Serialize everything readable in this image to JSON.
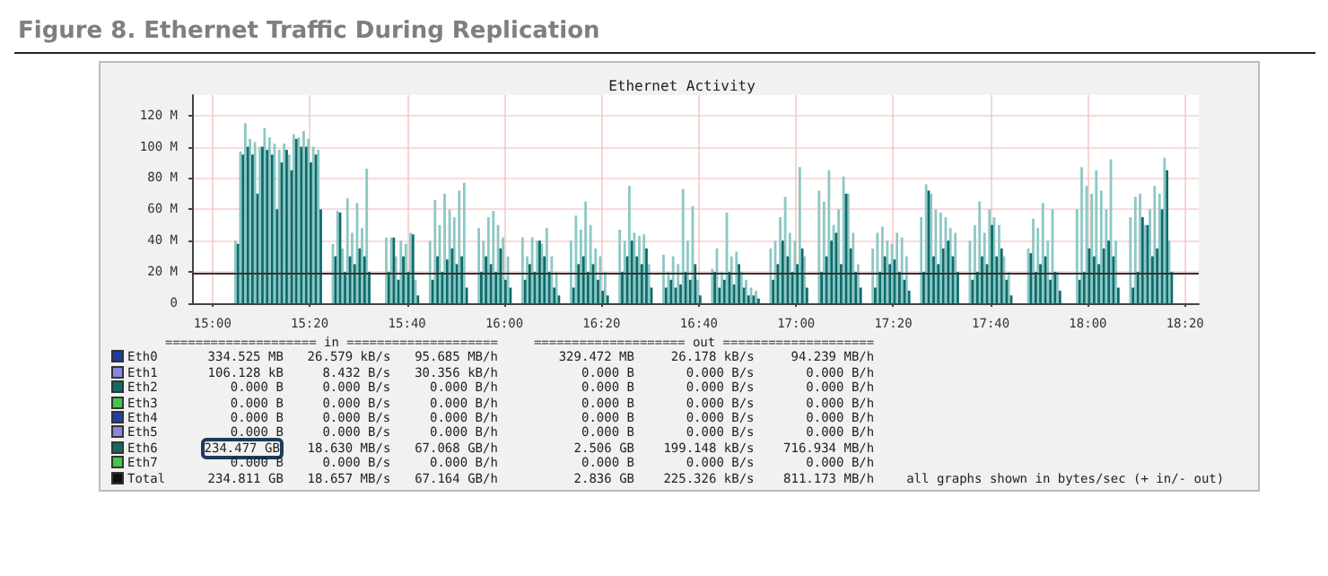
{
  "chart_data": {
    "type": "bar",
    "title": "Figure 8.  Ethernet Traffic During Replication",
    "subtitle": "Ethernet Activity",
    "x": [
      15.083,
      15.1,
      15.117,
      15.133,
      15.15,
      15.167,
      15.183,
      15.2,
      15.217,
      15.233,
      15.25,
      15.267,
      15.283,
      15.3,
      15.317,
      15.333,
      15.35,
      15.367,
      15.417,
      15.433,
      15.45,
      15.467,
      15.483,
      15.5,
      15.517,
      15.533,
      15.6,
      15.617,
      15.633,
      15.65,
      15.667,
      15.683,
      15.7,
      15.75,
      15.767,
      15.783,
      15.8,
      15.817,
      15.833,
      15.85,
      15.867,
      15.917,
      15.933,
      15.95,
      15.967,
      15.983,
      16.0,
      16.017,
      16.067,
      16.083,
      16.1,
      16.117,
      16.133,
      16.15,
      16.167,
      16.183,
      16.233,
      16.25,
      16.267,
      16.283,
      16.3,
      16.317,
      16.333,
      16.35,
      16.4,
      16.417,
      16.433,
      16.45,
      16.467,
      16.483,
      16.5,
      16.55,
      16.567,
      16.583,
      16.6,
      16.617,
      16.633,
      16.65,
      16.667,
      16.717,
      16.733,
      16.75,
      16.767,
      16.783,
      16.8,
      16.817,
      16.833,
      16.85,
      16.867,
      16.917,
      16.933,
      16.95,
      16.967,
      16.983,
      17.0,
      17.017,
      17.033,
      17.083,
      17.1,
      17.117,
      17.133,
      17.15,
      17.167,
      17.183,
      17.2,
      17.217,
      17.267,
      17.283,
      17.3,
      17.317,
      17.333,
      17.35,
      17.367,
      17.383,
      17.433,
      17.45,
      17.467,
      17.483,
      17.5,
      17.517,
      17.533,
      17.55,
      17.6,
      17.617,
      17.633,
      17.65,
      17.667,
      17.683,
      17.7,
      17.717,
      17.733,
      17.8,
      17.817,
      17.833,
      17.85,
      17.867,
      17.883,
      17.9,
      17.967,
      17.983,
      18.0,
      18.017,
      18.033,
      18.05,
      18.067,
      18.083,
      18.1,
      18.15,
      18.167,
      18.183,
      18.2,
      18.217,
      18.233,
      18.25,
      18.267,
      18.283
    ],
    "series": [
      {
        "color": "#8cc8c4",
        "values": [
          40,
          97,
          115,
          105,
          103,
          100,
          112,
          106,
          102,
          98,
          102,
          95,
          108,
          106,
          110,
          105,
          100,
          98,
          38,
          59,
          35,
          67,
          45,
          64,
          48,
          86,
          42,
          42,
          30,
          40,
          38,
          45,
          15,
          40,
          66,
          50,
          70,
          60,
          55,
          72,
          77,
          48,
          40,
          55,
          59,
          50,
          42,
          30,
          42,
          30,
          42,
          40,
          38,
          48,
          30,
          20,
          40,
          56,
          47,
          65,
          50,
          35,
          30,
          20,
          47,
          40,
          75,
          45,
          43,
          44,
          25,
          31,
          20,
          30,
          25,
          73,
          40,
          62,
          15,
          22,
          35,
          20,
          58,
          30,
          33,
          20,
          15,
          10,
          8,
          35,
          40,
          55,
          68,
          45,
          40,
          87,
          30,
          72,
          65,
          85,
          50,
          60,
          81,
          70,
          45,
          25,
          35,
          45,
          49,
          40,
          38,
          45,
          42,
          30,
          55,
          76,
          70,
          60,
          58,
          55,
          48,
          45,
          40,
          50,
          65,
          45,
          60,
          55,
          50,
          30,
          20,
          35,
          54,
          48,
          64,
          40,
          60,
          20,
          60,
          87,
          75,
          70,
          85,
          72,
          60,
          92,
          40,
          55,
          68,
          70,
          50,
          60,
          75,
          70,
          93,
          40
        ]
      },
      {
        "color": "#0e6b6b",
        "values": [
          38,
          95,
          100,
          95,
          70,
          100,
          98,
          95,
          60,
          90,
          98,
          85,
          105,
          100,
          100,
          90,
          95,
          60,
          30,
          58,
          20,
          30,
          25,
          35,
          30,
          20,
          20,
          42,
          15,
          30,
          20,
          44,
          5,
          15,
          30,
          20,
          28,
          35,
          25,
          30,
          10,
          20,
          30,
          25,
          20,
          35,
          15,
          10,
          15,
          25,
          20,
          40,
          30,
          20,
          10,
          5,
          10,
          25,
          30,
          20,
          25,
          15,
          8,
          5,
          20,
          30,
          40,
          30,
          25,
          35,
          10,
          10,
          15,
          10,
          12,
          20,
          15,
          25,
          5,
          20,
          10,
          15,
          20,
          12,
          25,
          10,
          5,
          5,
          3,
          15,
          25,
          40,
          30,
          20,
          25,
          35,
          10,
          20,
          30,
          40,
          45,
          25,
          70,
          35,
          20,
          10,
          10,
          20,
          30,
          25,
          28,
          20,
          15,
          8,
          20,
          72,
          30,
          25,
          35,
          40,
          30,
          20,
          15,
          20,
          30,
          25,
          50,
          30,
          35,
          15,
          5,
          32,
          20,
          25,
          30,
          15,
          20,
          8,
          15,
          20,
          35,
          30,
          25,
          35,
          40,
          30,
          10,
          10,
          20,
          55,
          50,
          30,
          35,
          60,
          85,
          20
        ]
      }
    ],
    "xlim": [
      14.93,
      18.38
    ],
    "xticks": [
      {
        "value": 15,
        "label": "15:00"
      },
      {
        "value": 15.333,
        "label": "15:20"
      },
      {
        "value": 15.667,
        "label": "15:40"
      },
      {
        "value": 16,
        "label": "16:00"
      },
      {
        "value": 16.333,
        "label": "16:20"
      },
      {
        "value": 16.667,
        "label": "16:40"
      },
      {
        "value": 17,
        "label": "17:00"
      },
      {
        "value": 17.333,
        "label": "17:20"
      },
      {
        "value": 17.667,
        "label": "17:40"
      },
      {
        "value": 18,
        "label": "18:00"
      },
      {
        "value": 18.333,
        "label": "18:20"
      }
    ],
    "ylim": [
      0,
      133
    ],
    "yticks": [
      0,
      {
        "value": 20,
        "label": "20 M"
      },
      {
        "value": 40,
        "label": "40 M"
      },
      {
        "value": 60,
        "label": "60 M"
      },
      {
        "value": 80,
        "label": "80 M"
      },
      {
        "value": 100,
        "label": "100 M"
      },
      {
        "value": 120,
        "label": "120 M"
      }
    ],
    "grid": true,
    "ref_lines": [
      {
        "axis": "y",
        "value": 19,
        "color": "#333333"
      }
    ],
    "annotations": [
      "  ==================== in ====================  ==================== out ====================",
      "Eth0  334.525 MB  26.579 kB/s  95.685 MB/h  329.472 MB  26.178 kB/s  94.239 MB/h",
      "Eth1  106.128 kB  8.432 B/s  30.356 kB/h  0.000 B  0.000 B/s  0.000 B/h",
      "Eth2  0.000 B  0.000 B/s  0.000 B/h  0.000 B  0.000 B/s  0.000 B/h",
      "Eth3  0.000 B  0.000 B/s  0.000 B/h  0.000 B  0.000 B/s  0.000 B/h",
      "Eth4  0.000 B  0.000 B/s  0.000 B/h  0.000 B  0.000 B/s  0.000 B/h",
      "Eth5  0.000 B  0.000 B/s  0.000 B/h  0.000 B  0.000 B/s  0.000 B/h",
      "Eth6  234.477 GB  18.630 MB/s  67.068 GB/h  2.506 GB  199.148 kB/s  716.934 MB/h",
      "Eth7  0.000 B  0.000 B/s  0.000 B/h  0.000 B  0.000 B/s  0.000 B/h",
      "Total  234.811 GB  18.657 MB/s  67.164 GB/h  2.836 GB  225.326 kB/s  811.173 MB/h  all graphs shown in bytes/sec (+ in/- out)"
    ]
  }
}
